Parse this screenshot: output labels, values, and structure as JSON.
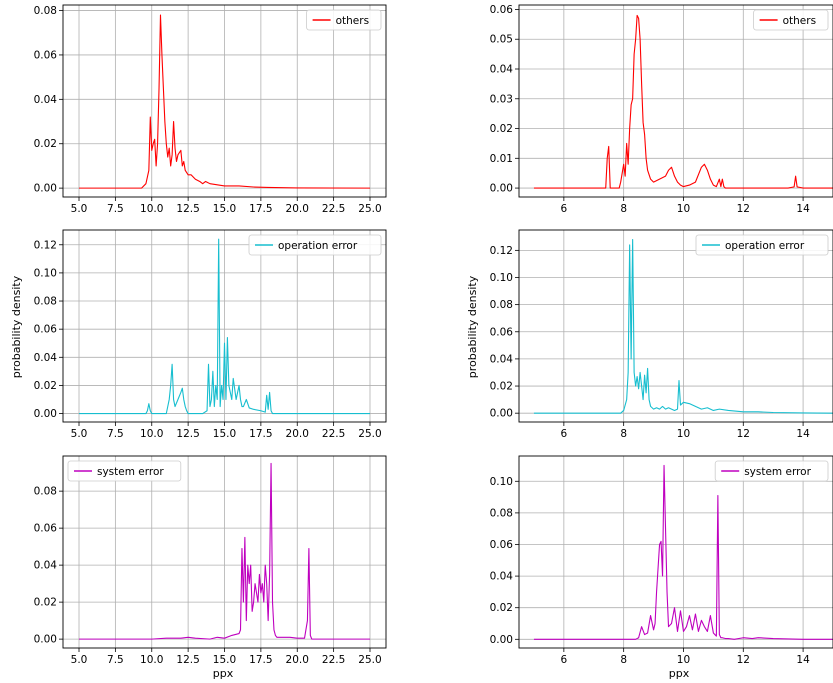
{
  "figure": {
    "ylabel_mid": "probability density",
    "xlabel_bottom": "ppx"
  },
  "chart_data": [
    {
      "id": "left-others",
      "type": "line",
      "color": "#ff0000",
      "legend": "others",
      "legend_loc": "upper right",
      "xlim": [
        3.9,
        26.1
      ],
      "ylim": [
        -0.004,
        0.0825
      ],
      "xticks": [
        5.0,
        7.5,
        10.0,
        12.5,
        15.0,
        17.5,
        20.0,
        22.5,
        25.0
      ],
      "xticklabels": [
        "5.0",
        "7.5",
        "10.0",
        "12.5",
        "15.0",
        "17.5",
        "20.0",
        "22.5",
        "25.0"
      ],
      "yticks": [
        0,
        0.02,
        0.04,
        0.06,
        0.08
      ],
      "yticklabels": [
        "0.00",
        "0.02",
        "0.04",
        "0.06",
        "0.08"
      ],
      "ylabel": "",
      "xlabel": "",
      "grid": true,
      "x": [
        5.0,
        9.3,
        9.6,
        9.7,
        9.8,
        9.9,
        10.0,
        10.1,
        10.2,
        10.3,
        10.4,
        10.5,
        10.6,
        10.7,
        10.8,
        10.9,
        11.0,
        11.1,
        11.2,
        11.3,
        11.4,
        11.5,
        11.6,
        11.7,
        11.8,
        11.9,
        12.0,
        12.1,
        12.2,
        12.3,
        12.5,
        12.7,
        13.0,
        13.3,
        13.5,
        13.7,
        14.0,
        14.5,
        15.0,
        15.5,
        16.0,
        17.0,
        18.0,
        20.0,
        25.0
      ],
      "y": [
        0.0,
        0.0,
        0.002,
        0.005,
        0.008,
        0.032,
        0.017,
        0.02,
        0.022,
        0.01,
        0.02,
        0.045,
        0.078,
        0.06,
        0.045,
        0.03,
        0.02,
        0.014,
        0.018,
        0.01,
        0.015,
        0.03,
        0.018,
        0.012,
        0.015,
        0.016,
        0.017,
        0.01,
        0.012,
        0.008,
        0.006,
        0.006,
        0.004,
        0.003,
        0.002,
        0.003,
        0.002,
        0.0015,
        0.001,
        0.001,
        0.001,
        0.0005,
        0.0003,
        0.0001,
        0.0
      ]
    },
    {
      "id": "right-others",
      "type": "line",
      "color": "#ff0000",
      "legend": "others",
      "legend_loc": "upper right",
      "xlim": [
        4.5,
        15.0
      ],
      "ylim": [
        -0.003,
        0.0615
      ],
      "xticks": [
        6,
        8,
        10,
        12,
        14
      ],
      "xticklabels": [
        "6",
        "8",
        "10",
        "12",
        "14"
      ],
      "yticks": [
        0,
        0.01,
        0.02,
        0.03,
        0.04,
        0.05,
        0.06
      ],
      "yticklabels": [
        "0.00",
        "0.01",
        "0.02",
        "0.03",
        "0.04",
        "0.05",
        "0.06"
      ],
      "ylabel": "",
      "xlabel": "",
      "grid": true,
      "x": [
        5.0,
        7.4,
        7.45,
        7.5,
        7.55,
        7.7,
        7.85,
        7.9,
        8.0,
        8.05,
        8.1,
        8.15,
        8.2,
        8.25,
        8.3,
        8.35,
        8.4,
        8.45,
        8.5,
        8.55,
        8.6,
        8.65,
        8.7,
        8.75,
        8.8,
        8.9,
        9.0,
        9.2,
        9.4,
        9.5,
        9.6,
        9.7,
        9.8,
        9.9,
        10.0,
        10.2,
        10.4,
        10.6,
        10.7,
        10.8,
        10.9,
        11.0,
        11.1,
        11.2,
        11.25,
        11.3,
        11.35,
        11.4,
        11.45,
        11.6,
        12.0,
        12.5,
        13.0,
        13.5,
        13.7,
        13.75,
        13.8,
        14.0,
        15.0
      ],
      "y": [
        0.0,
        0.0,
        0.01,
        0.014,
        0.0,
        0.0,
        0.0,
        0.002,
        0.008,
        0.004,
        0.015,
        0.008,
        0.02,
        0.028,
        0.03,
        0.045,
        0.05,
        0.058,
        0.057,
        0.05,
        0.035,
        0.022,
        0.018,
        0.01,
        0.006,
        0.003,
        0.002,
        0.003,
        0.004,
        0.006,
        0.007,
        0.004,
        0.002,
        0.001,
        0.0005,
        0.001,
        0.002,
        0.007,
        0.008,
        0.006,
        0.003,
        0.001,
        0.0005,
        0.003,
        0.0005,
        0.003,
        0.0005,
        0.0,
        0.0,
        0.0,
        0.0,
        0.0,
        0.0,
        0.0,
        0.0004,
        0.004,
        0.0004,
        0.0,
        0.0
      ]
    },
    {
      "id": "left-operation-error",
      "type": "line",
      "color": "#17becf",
      "legend": "operation error",
      "legend_loc": "upper right",
      "xlim": [
        3.9,
        26.1
      ],
      "ylim": [
        -0.006,
        0.1305
      ],
      "xticks": [
        5.0,
        7.5,
        10.0,
        12.5,
        15.0,
        17.5,
        20.0,
        22.5,
        25.0
      ],
      "xticklabels": [
        "5.0",
        "7.5",
        "10.0",
        "12.5",
        "15.0",
        "17.5",
        "20.0",
        "22.5",
        "25.0"
      ],
      "yticks": [
        0,
        0.02,
        0.04,
        0.06,
        0.08,
        0.1,
        0.12
      ],
      "yticklabels": [
        "0.00",
        "0.02",
        "0.04",
        "0.06",
        "0.08",
        "0.10",
        "0.12"
      ],
      "ylabel": "probability density",
      "xlabel": "",
      "grid": true,
      "x": [
        5.0,
        9.6,
        9.7,
        9.8,
        9.9,
        10.0,
        11.0,
        11.2,
        11.3,
        11.4,
        11.5,
        11.6,
        11.8,
        12.0,
        12.1,
        12.2,
        12.3,
        12.4,
        12.5,
        13.0,
        13.5,
        13.8,
        13.9,
        14.0,
        14.1,
        14.2,
        14.3,
        14.4,
        14.5,
        14.6,
        14.7,
        14.8,
        14.9,
        15.0,
        15.1,
        15.2,
        15.3,
        15.4,
        15.5,
        15.6,
        15.8,
        16.0,
        16.1,
        16.2,
        16.3,
        16.5,
        16.7,
        17.0,
        17.5,
        17.8,
        17.9,
        18.0,
        18.1,
        18.2,
        18.3,
        18.4,
        18.5,
        19.0,
        25.0
      ],
      "y": [
        0.0,
        0.0,
        0.002,
        0.007,
        0.002,
        0.0,
        0.0,
        0.01,
        0.02,
        0.035,
        0.01,
        0.005,
        0.01,
        0.015,
        0.018,
        0.01,
        0.005,
        0.002,
        0.0,
        0.0,
        0.0,
        0.002,
        0.035,
        0.005,
        0.01,
        0.03,
        0.005,
        0.02,
        0.01,
        0.124,
        0.005,
        0.02,
        0.01,
        0.05,
        0.01,
        0.054,
        0.02,
        0.015,
        0.01,
        0.025,
        0.01,
        0.02,
        0.01,
        0.005,
        0.005,
        0.01,
        0.004,
        0.003,
        0.002,
        0.001,
        0.013,
        0.003,
        0.015,
        0.002,
        0.0,
        0.0,
        0.0,
        0.0,
        0.0
      ]
    },
    {
      "id": "right-operation-error",
      "type": "line",
      "color": "#17becf",
      "legend": "operation error",
      "legend_loc": "upper right",
      "xlim": [
        4.5,
        15.0
      ],
      "ylim": [
        -0.0065,
        0.135
      ],
      "xticks": [
        6,
        8,
        10,
        12,
        14
      ],
      "xticklabels": [
        "6",
        "8",
        "10",
        "12",
        "14"
      ],
      "yticks": [
        0,
        0.02,
        0.04,
        0.06,
        0.08,
        0.1,
        0.12
      ],
      "yticklabels": [
        "0.00",
        "0.02",
        "0.04",
        "0.06",
        "0.08",
        "0.10",
        "0.12"
      ],
      "ylabel": "probability density",
      "xlabel": "",
      "grid": true,
      "x": [
        5.0,
        7.9,
        8.0,
        8.1,
        8.15,
        8.2,
        8.25,
        8.3,
        8.35,
        8.4,
        8.45,
        8.5,
        8.55,
        8.6,
        8.65,
        8.7,
        8.75,
        8.8,
        8.85,
        8.9,
        9.0,
        9.1,
        9.2,
        9.3,
        9.4,
        9.5,
        9.6,
        9.7,
        9.8,
        9.85,
        9.9,
        10.0,
        10.2,
        10.4,
        10.6,
        10.8,
        11.0,
        11.2,
        11.5,
        12.0,
        12.5,
        13.0,
        14.0,
        15.0
      ],
      "y": [
        0.0,
        0.0,
        0.002,
        0.01,
        0.03,
        0.124,
        0.04,
        0.128,
        0.03,
        0.02,
        0.027,
        0.018,
        0.03,
        0.02,
        0.01,
        0.028,
        0.015,
        0.033,
        0.01,
        0.005,
        0.003,
        0.004,
        0.003,
        0.005,
        0.003,
        0.004,
        0.003,
        0.002,
        0.003,
        0.024,
        0.006,
        0.008,
        0.007,
        0.005,
        0.003,
        0.004,
        0.002,
        0.003,
        0.002,
        0.001,
        0.001,
        0.0005,
        0.0002,
        0.0
      ]
    },
    {
      "id": "left-system-error",
      "type": "line",
      "color": "#bf00bf",
      "legend": "system error",
      "legend_loc": "upper left",
      "xlim": [
        3.9,
        26.1
      ],
      "ylim": [
        -0.0048,
        0.099
      ],
      "xticks": [
        5.0,
        7.5,
        10.0,
        12.5,
        15.0,
        17.5,
        20.0,
        22.5,
        25.0
      ],
      "xticklabels": [
        "5.0",
        "7.5",
        "10.0",
        "12.5",
        "15.0",
        "17.5",
        "20.0",
        "22.5",
        "25.0"
      ],
      "yticks": [
        0,
        0.02,
        0.04,
        0.06,
        0.08
      ],
      "yticklabels": [
        "0.00",
        "0.02",
        "0.04",
        "0.06",
        "0.08"
      ],
      "ylabel": "",
      "xlabel": "ppx",
      "grid": true,
      "x": [
        5.0,
        10.0,
        11.0,
        12.0,
        12.5,
        13.0,
        14.0,
        14.5,
        15.0,
        15.5,
        16.0,
        16.1,
        16.2,
        16.3,
        16.4,
        16.5,
        16.6,
        16.7,
        16.8,
        16.9,
        17.0,
        17.1,
        17.2,
        17.3,
        17.4,
        17.5,
        17.6,
        17.7,
        17.8,
        17.9,
        18.0,
        18.1,
        18.2,
        18.3,
        18.4,
        18.5,
        18.6,
        19.0,
        19.5,
        20.0,
        20.5,
        20.7,
        20.8,
        20.9,
        21.0,
        22.0,
        25.0
      ],
      "y": [
        0.0,
        0.0,
        0.0005,
        0.0005,
        0.001,
        0.0005,
        0.0,
        0.001,
        0.0005,
        0.002,
        0.003,
        0.005,
        0.049,
        0.02,
        0.055,
        0.01,
        0.04,
        0.03,
        0.04,
        0.015,
        0.02,
        0.03,
        0.025,
        0.02,
        0.035,
        0.025,
        0.03,
        0.02,
        0.04,
        0.03,
        0.01,
        0.035,
        0.095,
        0.02,
        0.005,
        0.002,
        0.001,
        0.001,
        0.001,
        0.0005,
        0.0005,
        0.01,
        0.049,
        0.002,
        0.0,
        0.0,
        0.0
      ]
    },
    {
      "id": "right-system-error",
      "type": "line",
      "color": "#bf00bf",
      "legend": "system error",
      "legend_loc": "upper right",
      "xlim": [
        4.5,
        15.0
      ],
      "ylim": [
        -0.0055,
        0.116
      ],
      "xticks": [
        6,
        8,
        10,
        12,
        14
      ],
      "xticklabels": [
        "6",
        "8",
        "10",
        "12",
        "14"
      ],
      "yticks": [
        0,
        0.02,
        0.04,
        0.06,
        0.08,
        0.1
      ],
      "yticklabels": [
        "0.00",
        "0.02",
        "0.04",
        "0.06",
        "0.08",
        "0.10"
      ],
      "ylabel": "",
      "xlabel": "ppx",
      "grid": true,
      "x": [
        5.0,
        8.4,
        8.5,
        8.6,
        8.7,
        8.8,
        8.9,
        9.0,
        9.05,
        9.1,
        9.2,
        9.25,
        9.3,
        9.35,
        9.4,
        9.45,
        9.5,
        9.6,
        9.7,
        9.8,
        9.9,
        10.0,
        10.1,
        10.2,
        10.3,
        10.4,
        10.5,
        10.6,
        10.7,
        10.8,
        10.9,
        11.0,
        11.1,
        11.15,
        11.2,
        11.25,
        11.3,
        11.4,
        11.5,
        11.7,
        12.0,
        12.3,
        12.5,
        13.0,
        14.0,
        15.0
      ],
      "y": [
        0.0,
        0.0,
        0.001,
        0.008,
        0.003,
        0.004,
        0.015,
        0.006,
        0.01,
        0.03,
        0.06,
        0.062,
        0.04,
        0.11,
        0.07,
        0.03,
        0.008,
        0.01,
        0.02,
        0.005,
        0.018,
        0.005,
        0.008,
        0.015,
        0.006,
        0.016,
        0.005,
        0.012,
        0.008,
        0.005,
        0.015,
        0.004,
        0.002,
        0.091,
        0.003,
        0.001,
        0.001,
        0.0005,
        0.0005,
        0.0,
        0.001,
        0.0005,
        0.001,
        0.0005,
        0.0,
        0.0
      ]
    }
  ]
}
